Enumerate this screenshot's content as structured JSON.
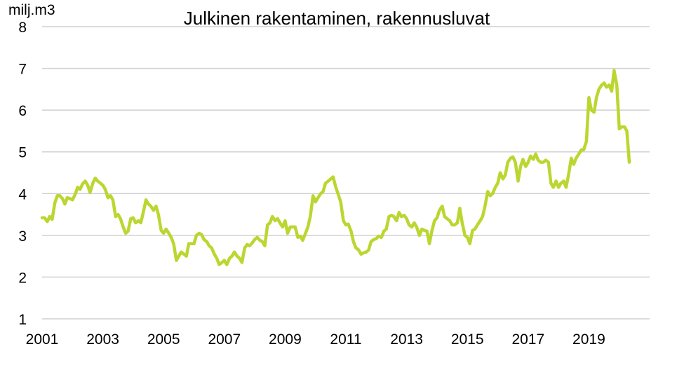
{
  "chart_data": {
    "type": "line",
    "title": "Julkinen rakentaminen, rakennusluvat",
    "ylabel": "milj.m3",
    "xlabel": "",
    "ylim": [
      1,
      8
    ],
    "xlim": [
      2001,
      2021
    ],
    "yticks": [
      "1",
      "2",
      "3",
      "4",
      "5",
      "6",
      "7",
      "8"
    ],
    "xticks": [
      "2001",
      "2003",
      "2005",
      "2007",
      "2009",
      "2011",
      "2013",
      "2015",
      "2017",
      "2019"
    ],
    "grid": true,
    "legend": "none",
    "series": [
      {
        "color": "#bcd631",
        "x": [
          2001.0,
          2001.08,
          2001.17,
          2001.25,
          2001.33,
          2001.42,
          2001.5,
          2001.58,
          2001.67,
          2001.75,
          2001.83,
          2001.92,
          2002.0,
          2002.08,
          2002.17,
          2002.25,
          2002.33,
          2002.42,
          2002.5,
          2002.58,
          2002.67,
          2002.75,
          2002.83,
          2002.92,
          2003.0,
          2003.08,
          2003.17,
          2003.25,
          2003.33,
          2003.42,
          2003.5,
          2003.58,
          2003.67,
          2003.75,
          2003.83,
          2003.92,
          2004.0,
          2004.08,
          2004.17,
          2004.25,
          2004.33,
          2004.42,
          2004.5,
          2004.58,
          2004.67,
          2004.75,
          2004.83,
          2004.92,
          2005.0,
          2005.08,
          2005.17,
          2005.25,
          2005.33,
          2005.42,
          2005.5,
          2005.58,
          2005.67,
          2005.75,
          2005.83,
          2005.92,
          2006.0,
          2006.08,
          2006.17,
          2006.25,
          2006.33,
          2006.42,
          2006.5,
          2006.58,
          2006.67,
          2006.75,
          2006.83,
          2006.92,
          2007.0,
          2007.08,
          2007.17,
          2007.25,
          2007.33,
          2007.42,
          2007.5,
          2007.58,
          2007.67,
          2007.75,
          2007.83,
          2007.92,
          2008.0,
          2008.08,
          2008.17,
          2008.25,
          2008.33,
          2008.42,
          2008.5,
          2008.58,
          2008.67,
          2008.75,
          2008.83,
          2008.92,
          2009.0,
          2009.08,
          2009.17,
          2009.25,
          2009.33,
          2009.42,
          2009.5,
          2009.58,
          2009.67,
          2009.75,
          2009.83,
          2009.92,
          2010.0,
          2010.08,
          2010.17,
          2010.25,
          2010.33,
          2010.42,
          2010.5,
          2010.58,
          2010.67,
          2010.75,
          2010.83,
          2010.92,
          2011.0,
          2011.08,
          2011.17,
          2011.25,
          2011.33,
          2011.42,
          2011.5,
          2011.58,
          2011.67,
          2011.75,
          2011.83,
          2011.92,
          2012.0,
          2012.08,
          2012.17,
          2012.25,
          2012.33,
          2012.42,
          2012.5,
          2012.58,
          2012.67,
          2012.75,
          2012.83,
          2012.92,
          2013.0,
          2013.08,
          2013.17,
          2013.25,
          2013.33,
          2013.42,
          2013.5,
          2013.58,
          2013.67,
          2013.75,
          2013.83,
          2013.92,
          2014.0,
          2014.08,
          2014.17,
          2014.25,
          2014.33,
          2014.42,
          2014.5,
          2014.58,
          2014.67,
          2014.75,
          2014.83,
          2014.92,
          2015.0,
          2015.08,
          2015.17,
          2015.25,
          2015.33,
          2015.42,
          2015.5,
          2015.58,
          2015.67,
          2015.75,
          2015.83,
          2015.92,
          2016.0,
          2016.08,
          2016.17,
          2016.25,
          2016.33,
          2016.42,
          2016.5,
          2016.58,
          2016.67,
          2016.75,
          2016.83,
          2016.92,
          2017.0,
          2017.08,
          2017.17,
          2017.25,
          2017.33,
          2017.42,
          2017.5,
          2017.58,
          2017.67,
          2017.75,
          2017.83,
          2017.92,
          2018.0,
          2018.08,
          2018.17,
          2018.25,
          2018.33,
          2018.42,
          2018.5,
          2018.58,
          2018.67,
          2018.75,
          2018.83,
          2018.92,
          2019.0,
          2019.08,
          2019.17,
          2019.25,
          2019.33,
          2019.42,
          2019.5,
          2019.58,
          2019.67,
          2019.75,
          2019.83,
          2019.92,
          2020.0,
          2020.08,
          2020.17,
          2020.25,
          2020.33
        ],
        "values": [
          3.42,
          3.42,
          3.33,
          3.45,
          3.38,
          3.78,
          3.95,
          3.95,
          3.88,
          3.75,
          3.9,
          3.88,
          3.85,
          3.97,
          4.15,
          4.1,
          4.23,
          4.3,
          4.2,
          4.03,
          4.25,
          4.37,
          4.3,
          4.25,
          4.2,
          4.1,
          3.9,
          3.95,
          3.85,
          3.45,
          3.5,
          3.4,
          3.2,
          3.05,
          3.1,
          3.4,
          3.42,
          3.3,
          3.35,
          3.3,
          3.55,
          3.85,
          3.75,
          3.7,
          3.6,
          3.7,
          3.5,
          3.12,
          3.05,
          3.15,
          3.05,
          2.95,
          2.8,
          2.4,
          2.5,
          2.6,
          2.55,
          2.5,
          2.8,
          2.8,
          2.8,
          3.0,
          3.05,
          3.02,
          2.9,
          2.85,
          2.75,
          2.7,
          2.55,
          2.45,
          2.3,
          2.35,
          2.4,
          2.3,
          2.45,
          2.5,
          2.6,
          2.5,
          2.45,
          2.35,
          2.7,
          2.78,
          2.75,
          2.82,
          2.9,
          2.95,
          2.88,
          2.85,
          2.75,
          3.25,
          3.3,
          3.45,
          3.35,
          3.4,
          3.3,
          3.2,
          3.35,
          3.05,
          3.2,
          3.2,
          3.2,
          2.95,
          2.98,
          2.88,
          3.05,
          3.2,
          3.45,
          3.95,
          3.8,
          3.9,
          4.0,
          4.05,
          4.25,
          4.3,
          4.35,
          4.4,
          4.15,
          3.98,
          3.8,
          3.35,
          3.25,
          3.27,
          3.1,
          2.85,
          2.7,
          2.65,
          2.55,
          2.58,
          2.6,
          2.65,
          2.85,
          2.9,
          2.92,
          2.98,
          2.95,
          3.1,
          3.15,
          3.45,
          3.48,
          3.45,
          3.35,
          3.55,
          3.45,
          3.48,
          3.4,
          3.25,
          3.2,
          3.3,
          3.2,
          3.0,
          3.15,
          3.12,
          3.1,
          2.8,
          3.1,
          3.35,
          3.42,
          3.6,
          3.7,
          3.45,
          3.4,
          3.35,
          3.25,
          3.25,
          3.3,
          3.65,
          3.3,
          3.0,
          2.95,
          2.8,
          3.12,
          3.15,
          3.25,
          3.35,
          3.45,
          3.7,
          4.05,
          3.95,
          4.0,
          4.15,
          4.25,
          4.5,
          4.35,
          4.45,
          4.75,
          4.85,
          4.88,
          4.75,
          4.3,
          4.65,
          4.82,
          4.65,
          4.75,
          4.9,
          4.82,
          4.95,
          4.8,
          4.75,
          4.75,
          4.8,
          4.75,
          4.25,
          4.15,
          4.3,
          4.15,
          4.25,
          4.3,
          4.15,
          4.45,
          4.85,
          4.7,
          4.85,
          4.95,
          5.05,
          5.05,
          5.25,
          6.3,
          6.0,
          5.95,
          6.3,
          6.5,
          6.6,
          6.65,
          6.55,
          6.6,
          6.45,
          6.95,
          6.6,
          5.55,
          5.6,
          5.6,
          5.5,
          4.75
        ]
      }
    ]
  }
}
